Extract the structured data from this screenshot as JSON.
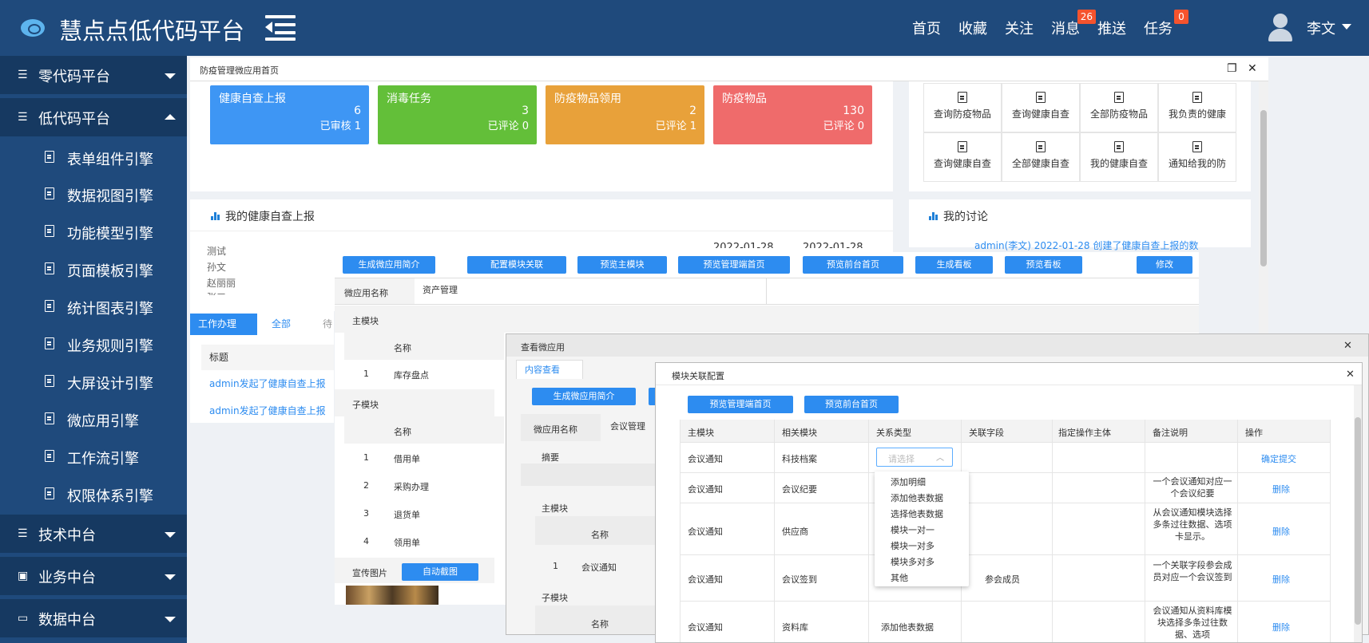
{
  "header": {
    "app_title": "慧点点低代码平台",
    "nav": [
      "首页",
      "收藏",
      "关注",
      "消息",
      "推送",
      "任务"
    ],
    "msg_badge": "26",
    "task_badge": "0",
    "username": "李文"
  },
  "sidebar": {
    "groups": [
      "零代码平台",
      "低代码平台",
      "技术中台",
      "业务中台",
      "数据中台"
    ],
    "items": [
      "表单组件引擎",
      "数据视图引擎",
      "功能模型引擎",
      "页面模板引擎",
      "统计图表引擎",
      "业务规则引擎",
      "大屏设计引擎",
      "微应用引擎",
      "工作流引擎",
      "权限体系引擎"
    ]
  },
  "window": {
    "title": "防疫管理微应用首页"
  },
  "stats": [
    {
      "title": "健康自查上报",
      "value": "6",
      "sub": "已审核 1",
      "color": "#3e96f4"
    },
    {
      "title": "消毒任务",
      "value": "3",
      "sub": "已评论 0",
      "color": "#63bf39"
    },
    {
      "title": "防疫物品领用",
      "value": "2",
      "sub": "已评论 1",
      "color": "#e8a13a"
    },
    {
      "title": "防疫物品",
      "value": "130",
      "sub": "已评论 0",
      "color": "#ef6b6b"
    }
  ],
  "quick_links": [
    "查询防疫物品",
    "查询健康自查",
    "全部防疫物品",
    "我负责的健康",
    "查询健康自查",
    "全部健康自查",
    "我的健康自查",
    "通知给我的防"
  ],
  "health": {
    "title": "我的健康自查上报",
    "names": [
      "测试",
      "孙文",
      "赵丽丽",
      "张三"
    ],
    "dates": [
      "2022-01-28",
      "2022-01-28"
    ]
  },
  "discussion": {
    "title": "我的讨论",
    "item": "admin(李文) 2022-01-28 创建了健康自查上报的数"
  },
  "work": {
    "tabs": [
      "工作办理",
      "全部",
      "待"
    ],
    "col": "标题",
    "rows": [
      "admin发起了健康自查上报",
      "admin发起了健康自查上报"
    ]
  },
  "p1": {
    "buttons": [
      "生成微应用简介",
      "配置模块关联",
      "预览主模块",
      "预览管理端首页",
      "预览前台首页",
      "生成看板",
      "预览看板",
      "修改"
    ],
    "name_label": "微应用名称",
    "name_value": "资产管理",
    "main_label": "主模块",
    "sub_label": "子模块",
    "col_name": "名称",
    "main_rows": [
      {
        "n": "1",
        "v": "库存盘点"
      }
    ],
    "sub_rows": [
      {
        "n": "1",
        "v": "借用单"
      },
      {
        "n": "2",
        "v": "采购办理"
      },
      {
        "n": "3",
        "v": "退货单"
      },
      {
        "n": "4",
        "v": "领用单"
      }
    ],
    "promo_label": "宣传图片",
    "auto_btn": "自动截图"
  },
  "p2": {
    "title": "查看微应用",
    "tab": "内容查看",
    "btn": "生成微应用简介",
    "name_label": "微应用名称",
    "name_value": "会议管理",
    "summary": "摘要",
    "main_label": "主模块",
    "col_name": "名称",
    "row": {
      "n": "1",
      "v": "会议通知"
    },
    "sub_label": "子模块"
  },
  "p3": {
    "title": "模块关联配置",
    "buttons": [
      "预览管理端首页",
      "预览前台首页"
    ],
    "headers": [
      "主模块",
      "相关模块",
      "关系类型",
      "关联字段",
      "指定操作主体",
      "备注说明",
      "操作"
    ],
    "select_placeholder": "请选择",
    "confirm": "确定提交",
    "delete": "删除",
    "rows": [
      {
        "m": "会议通知",
        "r": "科技档案",
        "t": "",
        "f": "",
        "note": ""
      },
      {
        "m": "会议通知",
        "r": "会议纪要",
        "t": "",
        "f": "",
        "note": "一个会议通知对应一个会议纪要"
      },
      {
        "m": "会议通知",
        "r": "供应商",
        "t": "",
        "f": "",
        "note": "从会议通知模块选择多条过往数据、选项卡显示。"
      },
      {
        "m": "会议通知",
        "r": "会议签到",
        "t": "",
        "f": "参会成员",
        "note": "一个关联字段参会成员对应一个会议签到"
      },
      {
        "m": "会议通知",
        "r": "资料库",
        "t": "添加他表数据",
        "f": "",
        "note": "会议通知从资料库模块选择多条过往数据、选项"
      }
    ],
    "dropdown": [
      "添加明细",
      "添加他表数据",
      "选择他表数据",
      "模块一对一",
      "模块一对多",
      "模块多对多",
      "其他"
    ]
  }
}
